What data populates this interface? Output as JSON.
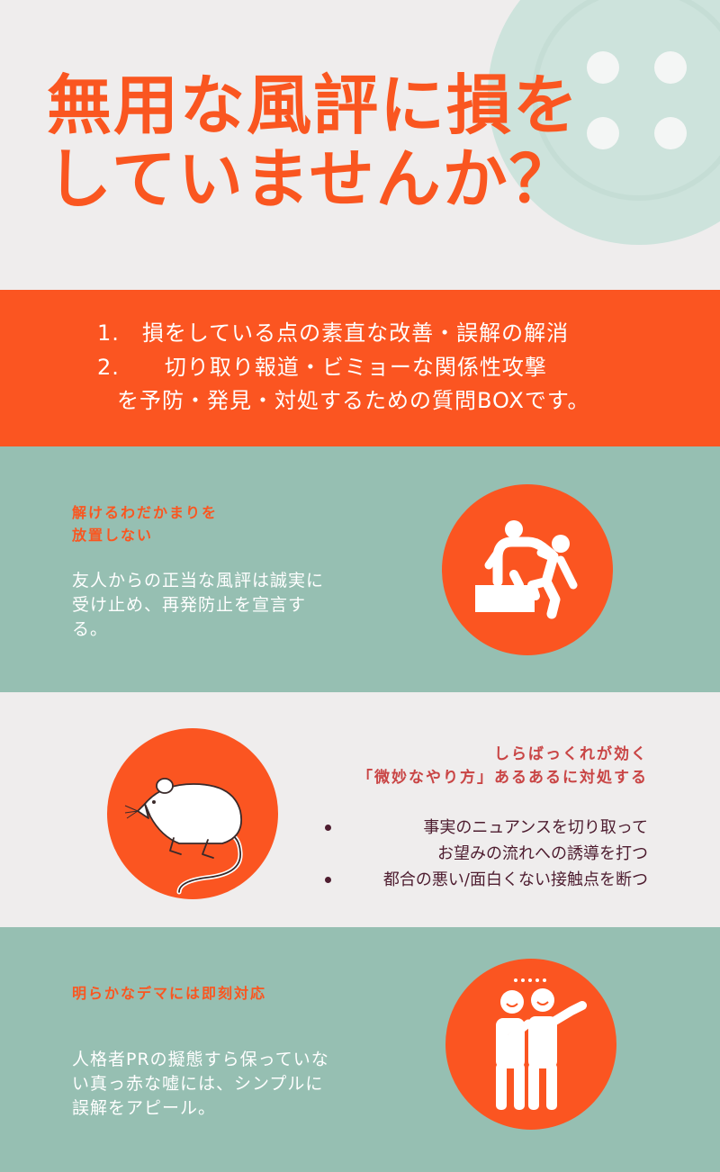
{
  "colors": {
    "accent": "#fb5521",
    "title": "#fa5620",
    "teal_bg": "#96bfb2",
    "light_bg": "#efeded",
    "button_deco": "#cde3dc",
    "sec2_heading": "#c94545",
    "bullet_text": "#4e1d30"
  },
  "header": {
    "title_line1": "無用な風評に損を",
    "title_line2": "していませんか？"
  },
  "banner": {
    "line1": "1.　損をしている点の素直な改善・誤解の解消",
    "line2": "2.　　切り取り報道・ビミョーな関係性攻撃",
    "line3": "を予防・発見・対処するための質問BOXです。"
  },
  "section1": {
    "heading_line1": "解けるわだかまりを",
    "heading_line2": "放置しない",
    "body_line1": "友人からの正当な風評は誠実に",
    "body_line2": "受け止め、再発防止を宣言す",
    "body_line3": "る。",
    "icon": "helping-hand-icon"
  },
  "section2": {
    "heading_line1": "しらばっくれが効く",
    "heading_line2": "「微妙なやり方」あるあるに対処する",
    "bullet1_line1": "事実のニュアンスを切り取って",
    "bullet1_line2": "お望みの流れへの誘導を打つ",
    "bullet2": "都合の悪い/面白くない接触点を断つ",
    "icon": "rat-icon"
  },
  "section3": {
    "heading": "明らかなデマには即刻対応",
    "body_line1": "人格者PRの擬態すら保っていな",
    "body_line2": "い真っ赤な嘘には、シンプルに",
    "body_line3": "誤解をアピール。",
    "icon": "gossip-icon"
  }
}
